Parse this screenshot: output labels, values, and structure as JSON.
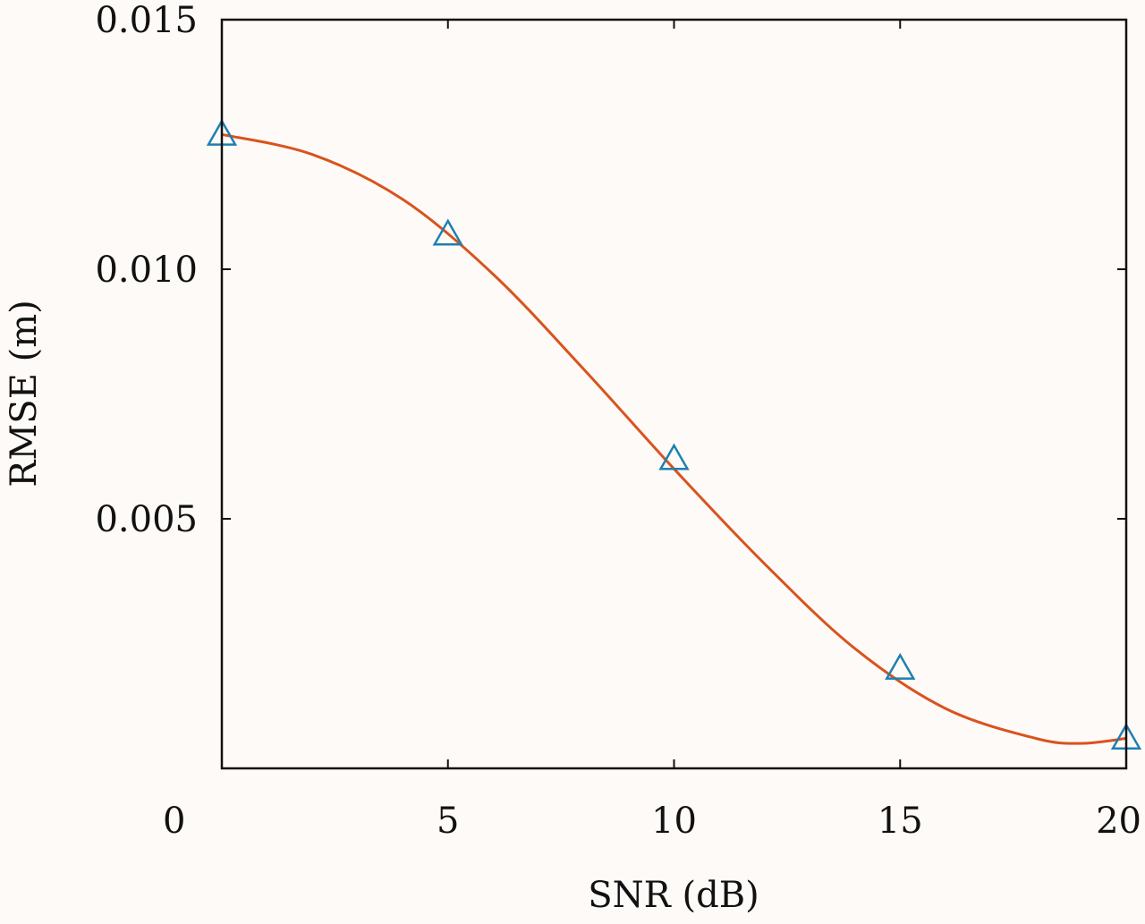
{
  "chart_data": {
    "type": "line",
    "title": "",
    "xlabel": "SNR (dB)",
    "ylabel": "RMSE (m)",
    "xlim": [
      0,
      20
    ],
    "ylim": [
      0,
      0.015
    ],
    "x_ticks": [
      "0",
      "5",
      "10",
      "15",
      "20"
    ],
    "y_ticks": [
      "0.005",
      "0.010",
      "0.015"
    ],
    "grid": false,
    "legend": "none",
    "series": [
      {
        "marker": "triangle",
        "marker_color": "#1f7fb0",
        "x": [
          0,
          5,
          10,
          15,
          20
        ],
        "values": [
          0.0127,
          0.0107,
          0.0062,
          0.002,
          0.0006
        ]
      },
      {
        "style": "smooth-fit-curve",
        "color": "#d9531e",
        "x": [
          0,
          2,
          4,
          6,
          8,
          10,
          12,
          14,
          16,
          18,
          19,
          20
        ],
        "values": [
          0.0127,
          0.0123,
          0.0114,
          0.0099,
          0.008,
          0.006,
          0.0041,
          0.0024,
          0.0012,
          0.0006,
          0.0005,
          0.0006
        ]
      }
    ]
  }
}
